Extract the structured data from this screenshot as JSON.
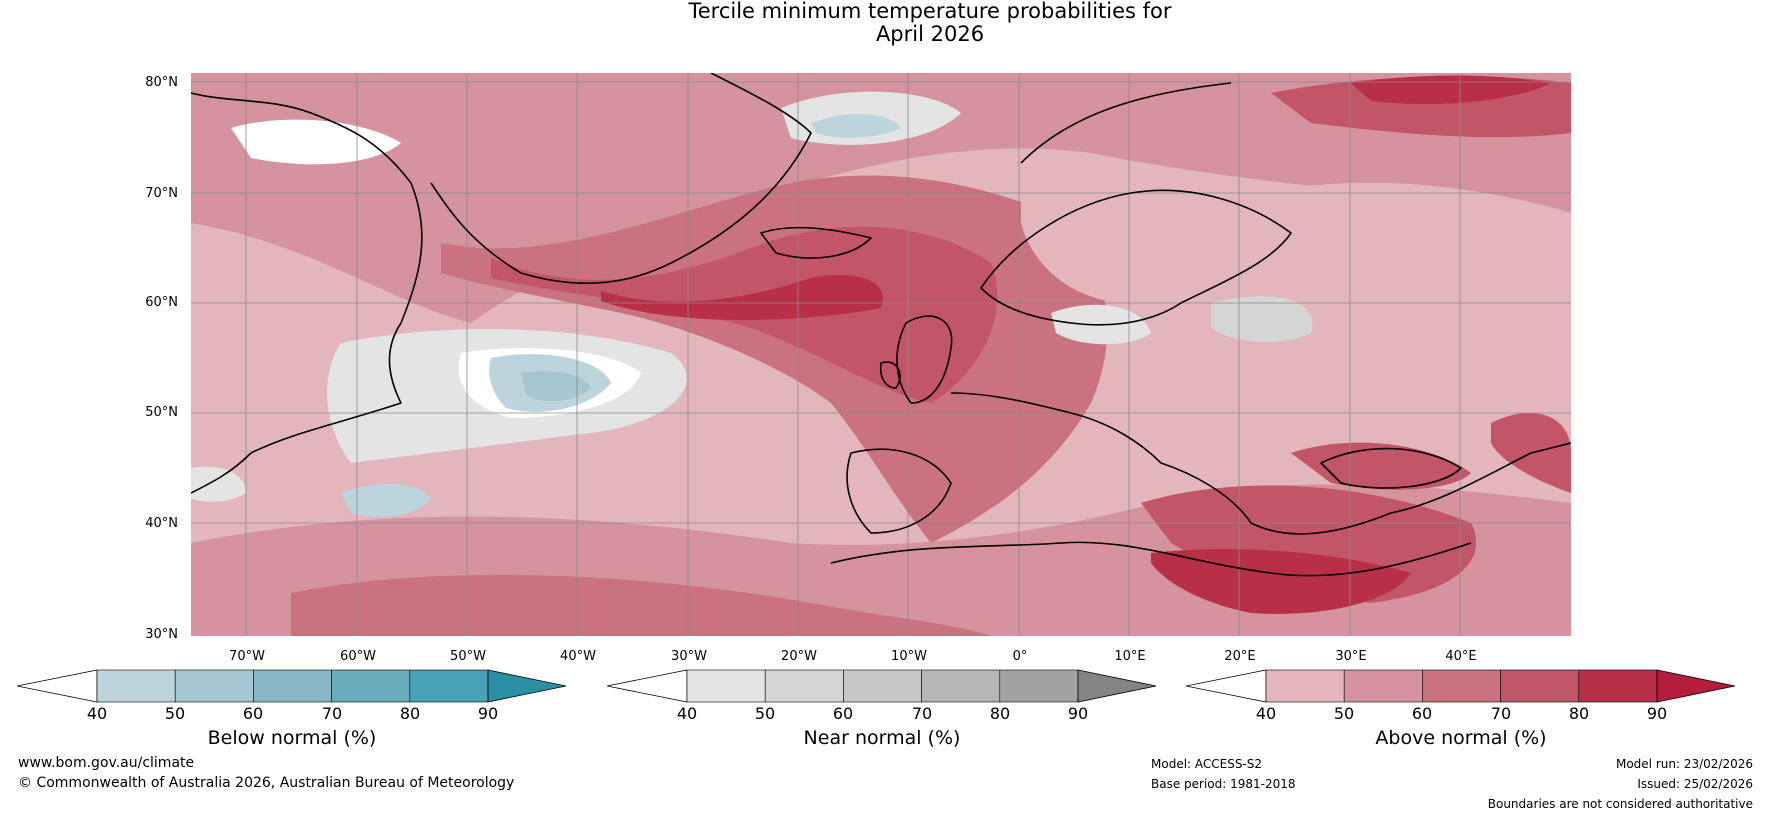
{
  "title": {
    "line1": "Tercile minimum temperature probabilities for",
    "line2": "April 2026"
  },
  "map": {
    "lat_labels": [
      "80°N",
      "70°N",
      "60°N",
      "50°N",
      "40°N",
      "30°N"
    ],
    "lon_labels": [
      "70°W",
      "60°W",
      "50°W",
      "40°W",
      "30°W",
      "20°W",
      "10°W",
      "0°",
      "10°E",
      "20°E",
      "30°E",
      "40°E"
    ],
    "extent": {
      "lon": [
        -75,
        50
      ],
      "lat": [
        30,
        81
      ]
    }
  },
  "colorbars": [
    {
      "label": "Below normal (%)",
      "ticks": [
        "40",
        "50",
        "60",
        "70",
        "80",
        "90"
      ],
      "colors": [
        "#ffffff",
        "#bcd4dc",
        "#a6c7d1",
        "#89b7c6",
        "#6aacbc",
        "#48a1b4",
        "#2b8fa6"
      ]
    },
    {
      "label": "Near normal (%)",
      "ticks": [
        "40",
        "50",
        "60",
        "70",
        "80",
        "90"
      ],
      "colors": [
        "#ffffff",
        "#e4e4e4",
        "#d5d5d5",
        "#c7c7c7",
        "#b6b6b6",
        "#a2a2a2",
        "#848484"
      ]
    },
    {
      "label": "Above normal (%)",
      "ticks": [
        "40",
        "50",
        "60",
        "70",
        "80",
        "90"
      ],
      "colors": [
        "#ffffff",
        "#e3b6be",
        "#d5929f",
        "#ca7280",
        "#c25567",
        "#b82f48",
        "#b31e3d"
      ]
    }
  ],
  "footer": {
    "url": "www.bom.gov.au/climate",
    "copyright": "© Commonwealth of Australia 2026, Australian Bureau of Meteorology",
    "model": "Model: ACCESS-S2",
    "base_period": "Base period: 1981-2018",
    "model_run": "Model run: 23/02/2026",
    "issued": "Issued: 25/02/2026",
    "disclaimer": "Boundaries are not considered authoritative"
  }
}
